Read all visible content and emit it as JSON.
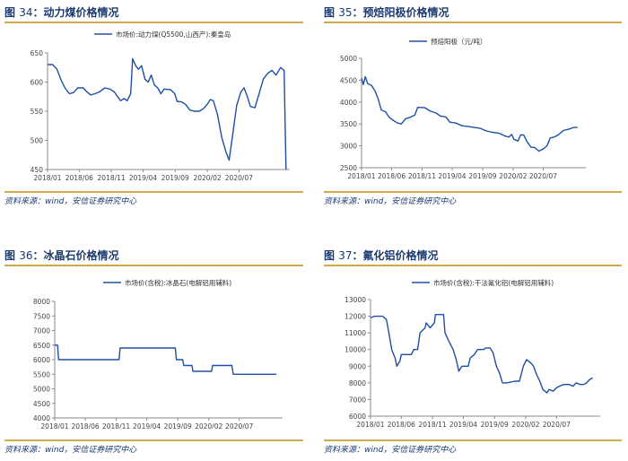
{
  "panels": [
    {
      "fig_label": "图",
      "fig_num": "34",
      "fig_colon": "：",
      "fig_name": "动力煤价格情况",
      "source": "资料来源：wind，安信证券研究中心",
      "chart_data": {
        "type": "line",
        "legend_position": "top",
        "ylim": [
          450,
          650
        ],
        "yticks": [
          "650",
          "600",
          "550",
          "500",
          "450"
        ],
        "xlim": [
          "2018-01-01",
          "2021-02-28"
        ],
        "xticks": [
          "2018/01",
          "2018/06",
          "2018/11",
          "2019/04",
          "2019/09",
          "2020/02",
          "2020/07"
        ],
        "series": [
          {
            "name": "市场价:动力煤(Q5500,山西产):秦皇岛",
            "color": "#1f4fa3",
            "points": [
              [
                "2018-01-01",
                630
              ],
              [
                "2018-01-25",
                630
              ],
              [
                "2018-02-15",
                622
              ],
              [
                "2018-03-05",
                605
              ],
              [
                "2018-03-25",
                590
              ],
              [
                "2018-04-15",
                580
              ],
              [
                "2018-05-05",
                582
              ],
              [
                "2018-05-25",
                590
              ],
              [
                "2018-06-20",
                590
              ],
              [
                "2018-07-05",
                584
              ],
              [
                "2018-07-25",
                578
              ],
              [
                "2018-08-15",
                580
              ],
              [
                "2018-09-05",
                583
              ],
              [
                "2018-10-01",
                590
              ],
              [
                "2018-10-25",
                588
              ],
              [
                "2018-11-15",
                583
              ],
              [
                "2018-12-01",
                575
              ],
              [
                "2018-12-15",
                568
              ],
              [
                "2019-01-01",
                572
              ],
              [
                "2019-01-15",
                568
              ],
              [
                "2019-02-01",
                580
              ],
              [
                "2019-02-10",
                640
              ],
              [
                "2019-02-25",
                628
              ],
              [
                "2019-03-10",
                622
              ],
              [
                "2019-03-25",
                628
              ],
              [
                "2019-04-10",
                605
              ],
              [
                "2019-04-25",
                600
              ],
              [
                "2019-05-10",
                612
              ],
              [
                "2019-05-25",
                595
              ],
              [
                "2019-06-10",
                590
              ],
              [
                "2019-06-25",
                580
              ],
              [
                "2019-07-10",
                588
              ],
              [
                "2019-08-10",
                587
              ],
              [
                "2019-08-30",
                580
              ],
              [
                "2019-09-10",
                567
              ],
              [
                "2019-10-01",
                566
              ],
              [
                "2019-10-20",
                562
              ],
              [
                "2019-11-10",
                552
              ],
              [
                "2019-12-01",
                550
              ],
              [
                "2019-12-25",
                550
              ],
              [
                "2020-01-15",
                555
              ],
              [
                "2020-02-01",
                562
              ],
              [
                "2020-02-15",
                570
              ],
              [
                "2020-03-01",
                568
              ],
              [
                "2020-03-20",
                545
              ],
              [
                "2020-04-10",
                505
              ],
              [
                "2020-04-30",
                480
              ],
              [
                "2020-05-15",
                466
              ],
              [
                "2020-06-01",
                510
              ],
              [
                "2020-06-20",
                560
              ],
              [
                "2020-07-10",
                583
              ],
              [
                "2020-07-25",
                590
              ],
              [
                "2020-08-10",
                575
              ],
              [
                "2020-08-25",
                558
              ],
              [
                "2020-09-15",
                556
              ],
              [
                "2020-10-05",
                580
              ],
              [
                "2020-10-25",
                605
              ],
              [
                "2020-11-15",
                615
              ],
              [
                "2020-12-05",
                620
              ],
              [
                "2020-12-25",
                612
              ],
              [
                "2021-01-15",
                625
              ],
              [
                "2021-02-01",
                620
              ],
              [
                "2021-02-10",
                450
              ]
            ]
          }
        ]
      }
    },
    {
      "fig_label": "图",
      "fig_num": "35",
      "fig_colon": "：",
      "fig_name": "预焙阳极价格情况",
      "source": "资料来源：wind，安信证券研究中心",
      "chart_data": {
        "type": "line",
        "legend_position": "top",
        "ylim": [
          2500,
          5000
        ],
        "yticks": [
          "5000",
          "4500",
          "4000",
          "3500",
          "3000",
          "2500"
        ],
        "xlim": [
          "2018-01-01",
          "2021-01-31"
        ],
        "xticks": [
          "2018/01",
          "2018/06",
          "2018/11",
          "2019/04",
          "2019/09",
          "2020/02",
          "2020/07"
        ],
        "series": [
          {
            "name": "预焙阳极（元/吨）",
            "color": "#1f4fa3",
            "points": [
              [
                "2018-01-01",
                4550
              ],
              [
                "2018-01-10",
                4400
              ],
              [
                "2018-01-20",
                4580
              ],
              [
                "2018-02-01",
                4420
              ],
              [
                "2018-02-20",
                4380
              ],
              [
                "2018-03-10",
                4250
              ],
              [
                "2018-03-25",
                4080
              ],
              [
                "2018-04-10",
                3820
              ],
              [
                "2018-05-01",
                3780
              ],
              [
                "2018-05-20",
                3650
              ],
              [
                "2018-06-10",
                3580
              ],
              [
                "2018-07-01",
                3520
              ],
              [
                "2018-07-20",
                3500
              ],
              [
                "2018-08-10",
                3620
              ],
              [
                "2018-09-01",
                3650
              ],
              [
                "2018-09-25",
                3700
              ],
              [
                "2018-10-10",
                3880
              ],
              [
                "2018-11-15",
                3870
              ],
              [
                "2018-12-10",
                3800
              ],
              [
                "2019-01-10",
                3750
              ],
              [
                "2019-02-01",
                3680
              ],
              [
                "2019-03-01",
                3660
              ],
              [
                "2019-03-20",
                3540
              ],
              [
                "2019-04-20",
                3520
              ],
              [
                "2019-05-20",
                3460
              ],
              [
                "2019-06-20",
                3440
              ],
              [
                "2019-07-20",
                3420
              ],
              [
                "2019-08-20",
                3400
              ],
              [
                "2019-09-20",
                3340
              ],
              [
                "2019-10-20",
                3310
              ],
              [
                "2019-11-20",
                3290
              ],
              [
                "2019-12-20",
                3230
              ],
              [
                "2020-01-10",
                3200
              ],
              [
                "2020-01-25",
                3260
              ],
              [
                "2020-02-05",
                3150
              ],
              [
                "2020-02-25",
                3110
              ],
              [
                "2020-03-10",
                3250
              ],
              [
                "2020-03-25",
                3250
              ],
              [
                "2020-04-10",
                3100
              ],
              [
                "2020-05-01",
                2970
              ],
              [
                "2020-05-20",
                2960
              ],
              [
                "2020-06-10",
                2880
              ],
              [
                "2020-07-01",
                2930
              ],
              [
                "2020-07-20",
                3000
              ],
              [
                "2020-08-05",
                3180
              ],
              [
                "2020-08-25",
                3200
              ],
              [
                "2020-09-15",
                3250
              ],
              [
                "2020-10-10",
                3350
              ],
              [
                "2020-11-05",
                3380
              ],
              [
                "2020-12-01",
                3420
              ],
              [
                "2020-12-20",
                3420
              ]
            ]
          }
        ]
      }
    },
    {
      "fig_label": "图",
      "fig_num": "36",
      "fig_colon": "：",
      "fig_name": "冰晶石价格情况",
      "source": "资料来源：wind，安信证券研究中心",
      "chart_data": {
        "type": "line",
        "legend_position": "top",
        "ylim": [
          4000,
          8000
        ],
        "yticks": [
          "8000",
          "7500",
          "7000",
          "6500",
          "6000",
          "5500",
          "5000",
          "4500",
          "4000"
        ],
        "xlim": [
          "2018-01-01",
          "2021-01-31"
        ],
        "xticks": [
          "2018/01",
          "2018/06",
          "2018/11",
          "2019/04",
          "2019/09",
          "2020/02",
          "2020/07"
        ],
        "series": [
          {
            "name": "市场价(含税):冰晶石(电解铝用辅料)",
            "color": "#1f4fa3",
            "points": [
              [
                "2018-01-01",
                6500
              ],
              [
                "2018-01-15",
                6500
              ],
              [
                "2018-01-20",
                6000
              ],
              [
                "2018-06-01",
                6000
              ],
              [
                "2018-11-15",
                6000
              ],
              [
                "2018-11-20",
                6400
              ],
              [
                "2019-04-01",
                6400
              ],
              [
                "2019-08-20",
                6400
              ],
              [
                "2019-08-25",
                6000
              ],
              [
                "2019-09-25",
                6000
              ],
              [
                "2019-10-01",
                5800
              ],
              [
                "2019-11-10",
                5800
              ],
              [
                "2019-11-15",
                5600
              ],
              [
                "2020-02-15",
                5600
              ],
              [
                "2020-02-20",
                5800
              ],
              [
                "2020-05-25",
                5800
              ],
              [
                "2020-06-01",
                5500
              ],
              [
                "2020-12-31",
                5500
              ]
            ]
          }
        ]
      }
    },
    {
      "fig_label": "图",
      "fig_num": "37",
      "fig_colon": "：",
      "fig_name": "氟化铝价格情况",
      "source": "资料来源：wind，安信证券研究中心",
      "chart_data": {
        "type": "line",
        "legend_position": "top",
        "ylim": [
          6000,
          13000
        ],
        "yticks": [
          "13000",
          "12000",
          "11000",
          "10000",
          "9000",
          "8000",
          "7000",
          "6000"
        ],
        "xlim": [
          "2018-01-01",
          "2021-01-31"
        ],
        "xticks": [
          "2018/01",
          "2018/06",
          "2018/11",
          "2019/04",
          "2019/09",
          "2020/02",
          "2020/07"
        ],
        "series": [
          {
            "name": "市场价(含税):干法氟化铝(电解铝用辅料)",
            "color": "#1f4fa3",
            "points": [
              [
                "2018-01-01",
                11900
              ],
              [
                "2018-01-20",
                12000
              ],
              [
                "2018-03-01",
                12000
              ],
              [
                "2018-03-20",
                11800
              ],
              [
                "2018-04-01",
                11000
              ],
              [
                "2018-04-15",
                10000
              ],
              [
                "2018-05-01",
                9500
              ],
              [
                "2018-05-10",
                9000
              ],
              [
                "2018-05-25",
                9300
              ],
              [
                "2018-06-01",
                9700
              ],
              [
                "2018-07-20",
                9700
              ],
              [
                "2018-08-01",
                10000
              ],
              [
                "2018-08-20",
                10000
              ],
              [
                "2018-09-01",
                11000
              ],
              [
                "2018-09-25",
                11300
              ],
              [
                "2018-10-01",
                11600
              ],
              [
                "2018-10-20",
                11300
              ],
              [
                "2018-11-10",
                11600
              ],
              [
                "2018-11-15",
                12100
              ],
              [
                "2018-12-25",
                12100
              ],
              [
                "2019-01-01",
                11000
              ],
              [
                "2019-01-20",
                10500
              ],
              [
                "2019-02-10",
                10000
              ],
              [
                "2019-02-25",
                9400
              ],
              [
                "2019-03-10",
                8700
              ],
              [
                "2019-03-25",
                9000
              ],
              [
                "2019-04-25",
                9000
              ],
              [
                "2019-05-05",
                9500
              ],
              [
                "2019-05-25",
                9700
              ],
              [
                "2019-06-10",
                10000
              ],
              [
                "2019-07-10",
                10000
              ],
              [
                "2019-07-20",
                10100
              ],
              [
                "2019-08-10",
                10100
              ],
              [
                "2019-08-25",
                9800
              ],
              [
                "2019-09-10",
                9000
              ],
              [
                "2019-09-25",
                8600
              ],
              [
                "2019-10-10",
                8000
              ],
              [
                "2019-11-01",
                8000
              ],
              [
                "2019-12-10",
                8100
              ],
              [
                "2020-01-01",
                8100
              ],
              [
                "2020-01-20",
                9000
              ],
              [
                "2020-02-05",
                9400
              ],
              [
                "2020-02-25",
                9200
              ],
              [
                "2020-03-10",
                9000
              ],
              [
                "2020-03-25",
                8500
              ],
              [
                "2020-04-10",
                8100
              ],
              [
                "2020-04-25",
                7600
              ],
              [
                "2020-05-15",
                7400
              ],
              [
                "2020-05-25",
                7600
              ],
              [
                "2020-06-15",
                7500
              ],
              [
                "2020-07-01",
                7700
              ],
              [
                "2020-07-15",
                7800
              ],
              [
                "2020-08-05",
                7900
              ],
              [
                "2020-09-01",
                7900
              ],
              [
                "2020-09-20",
                7800
              ],
              [
                "2020-10-05",
                8000
              ],
              [
                "2020-10-25",
                7900
              ],
              [
                "2020-11-10",
                7900
              ],
              [
                "2020-11-25",
                8000
              ],
              [
                "2020-12-10",
                8200
              ],
              [
                "2020-12-25",
                8300
              ]
            ]
          }
        ]
      }
    }
  ]
}
